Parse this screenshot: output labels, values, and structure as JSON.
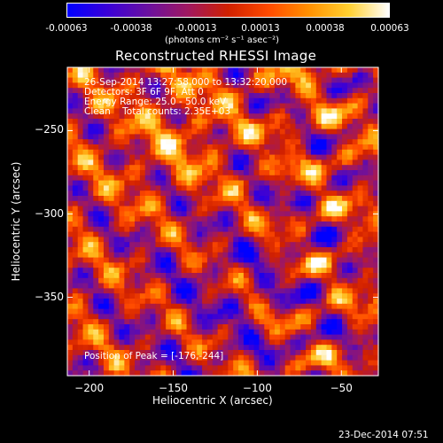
{
  "colorbar": {
    "ticks": [
      "-0.00063",
      "-0.00038",
      "-0.00013",
      "0.00013",
      "0.00038",
      "0.00063"
    ],
    "units_label": "(photons cm⁻² s⁻¹ asec⁻²)",
    "colormap": [
      "#0000ff",
      "#3a00d8",
      "#6a10a0",
      "#a01860",
      "#d02000",
      "#ff4a00",
      "#ff9000",
      "#ffd030",
      "#ffffff"
    ]
  },
  "chart_data": {
    "type": "heatmap",
    "title": "Reconstructed RHESSI Image",
    "xlabel": "Heliocentric X (arcsec)",
    "ylabel": "Heliocentric Y (arcsec)",
    "xlim": [
      -213,
      -28
    ],
    "ylim": [
      -397,
      -212
    ],
    "x_ticks": [
      -200,
      -150,
      -100,
      -50
    ],
    "y_ticks": [
      -250,
      -300,
      -350
    ],
    "zlim": [
      -0.00063,
      0.00063
    ],
    "peak": [
      -176,
      -244
    ],
    "annotations": [
      "26-Sep-2014 13:27:58.000 to 13:32:20.000",
      "Detectors: 3F 6F 9F, Att 0",
      "Energy Range: 25.0 - 50.0 keV",
      "Clean    Total counts: 2.35E+03"
    ],
    "peak_label": "Position of Peak = [-176,-244]"
  },
  "footer": {
    "timestamp": "23-Dec-2014 07:51"
  }
}
